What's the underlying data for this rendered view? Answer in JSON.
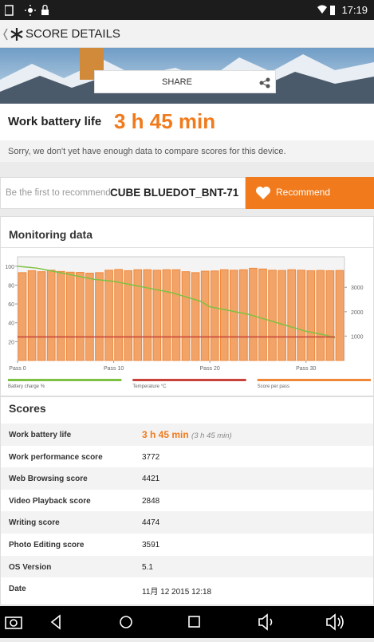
{
  "status_bar": {
    "time": "17:19"
  },
  "header": {
    "title": "SCORE DETAILS"
  },
  "banner": {
    "share": "SHARE"
  },
  "result": {
    "label": "Work battery life",
    "value": "3 h 45 min",
    "note": "Sorry, we don't yet have enough data to compare scores for this device."
  },
  "recommend": {
    "prompt": "Be the first to recommend",
    "device": "CUBE BLUEDOT_BNT-71",
    "button": "Recommend"
  },
  "monitoring": {
    "title": "Monitoring data"
  },
  "chart_data": {
    "type": "bar",
    "x": [
      0,
      1,
      2,
      3,
      4,
      5,
      6,
      7,
      8,
      9,
      10,
      11,
      12,
      13,
      14,
      15,
      16,
      17,
      18,
      19,
      20,
      21,
      22,
      23,
      24,
      25,
      26,
      27,
      28,
      29,
      30,
      31,
      32,
      33
    ],
    "xlim": [
      0,
      34
    ],
    "xticks": [
      {
        "value": 0,
        "label": "Pass 0"
      },
      {
        "value": 10,
        "label": "Pass 10"
      },
      {
        "value": 20,
        "label": "Pass 20"
      },
      {
        "value": 30,
        "label": "Pass 30"
      }
    ],
    "ylim": [
      0,
      110
    ],
    "yticks": [
      20,
      40,
      60,
      80,
      100
    ],
    "y2lim": [
      0,
      4250
    ],
    "y2ticks": [
      1000,
      2000,
      3000
    ],
    "series": [
      {
        "name": "Battery charge %",
        "type": "line",
        "color": "#7dc242",
        "values": [
          100,
          99,
          98,
          96,
          94,
          92,
          90,
          88,
          86,
          85,
          84,
          82,
          80,
          78,
          76,
          74,
          72,
          69,
          66,
          63,
          57,
          55,
          53,
          51,
          49,
          46,
          43,
          40,
          37,
          34,
          31,
          29,
          27,
          24
        ]
      },
      {
        "name": "Temperature °C",
        "type": "line",
        "color": "#c8423a",
        "values": [
          25,
          25,
          25,
          25,
          25,
          25,
          25,
          25,
          25,
          25,
          25,
          25,
          25,
          25,
          25,
          25,
          25,
          25,
          25,
          25,
          25,
          25,
          25,
          25,
          25,
          25,
          25,
          25,
          25,
          25,
          25,
          25,
          25,
          25
        ]
      },
      {
        "name": "Score per pass",
        "type": "bar",
        "axis": "y2",
        "color": "#f0883a",
        "values": [
          3600,
          3680,
          3640,
          3700,
          3650,
          3620,
          3610,
          3580,
          3600,
          3700,
          3730,
          3680,
          3720,
          3720,
          3700,
          3720,
          3720,
          3640,
          3600,
          3660,
          3670,
          3720,
          3700,
          3720,
          3780,
          3750,
          3700,
          3690,
          3720,
          3700,
          3680,
          3690,
          3680,
          3690
        ]
      }
    ]
  },
  "scores": {
    "title": "Scores",
    "rows": [
      {
        "label": "Work battery life",
        "value": "3 h 45 min",
        "detail": "(3 h 45 min)"
      },
      {
        "label": "Work performance score",
        "value": "3772"
      },
      {
        "label": "Web Browsing score",
        "value": "4421"
      },
      {
        "label": "Video Playback score",
        "value": "2848"
      },
      {
        "label": "Writing score",
        "value": "4474"
      },
      {
        "label": "Photo Editing score",
        "value": "3591"
      },
      {
        "label": "OS Version",
        "value": "5.1"
      },
      {
        "label": "Date",
        "value": "11月 12 2015 12:18"
      }
    ]
  }
}
